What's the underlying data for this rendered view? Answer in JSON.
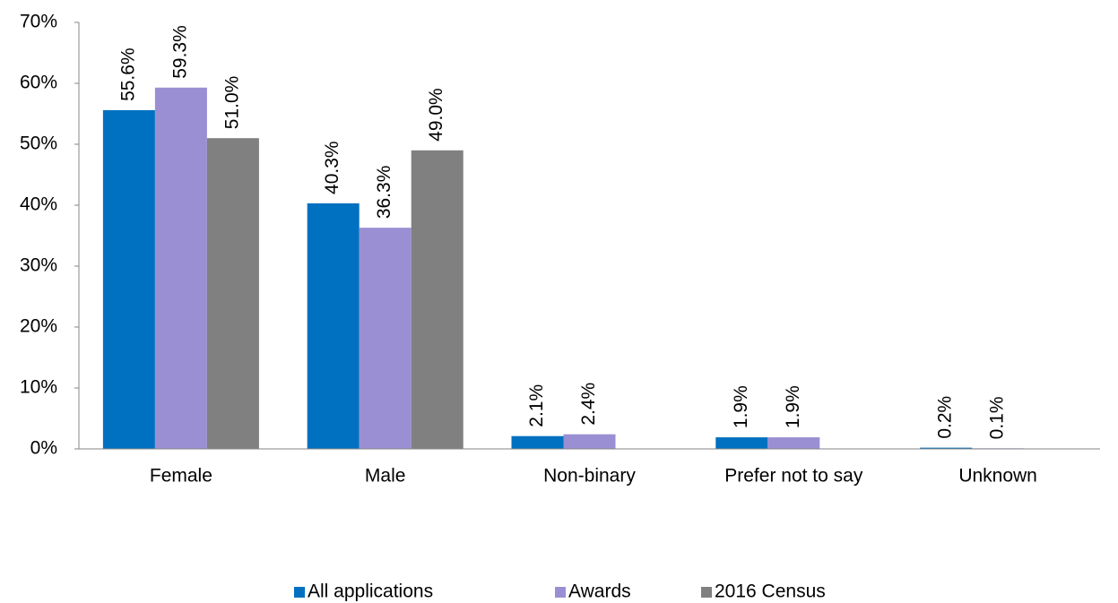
{
  "chart_data": {
    "type": "bar",
    "categories": [
      "Female",
      "Male",
      "Non-binary",
      "Prefer not to say",
      "Unknown"
    ],
    "series": [
      {
        "name": "All applications",
        "color": "#0070c0",
        "values": [
          55.6,
          40.3,
          2.1,
          1.9,
          0.2
        ],
        "value_labels": [
          "55.6%",
          "40.3%",
          "2.1%",
          "1.9%",
          "0.2%"
        ]
      },
      {
        "name": "Awards",
        "color": "#9b8fd3",
        "values": [
          59.3,
          36.3,
          2.4,
          1.9,
          0.1
        ],
        "value_labels": [
          "59.3%",
          "36.3%",
          "2.4%",
          "1.9%",
          "0.1%"
        ]
      },
      {
        "name": "2016 Census",
        "color": "#808080",
        "values": [
          51.0,
          49.0,
          null,
          null,
          null
        ],
        "value_labels": [
          "51.0%",
          "49.0%",
          null,
          null,
          null
        ]
      }
    ],
    "ylim": [
      0,
      70
    ],
    "yticks": [
      {
        "value": 0,
        "label": "0%"
      },
      {
        "value": 10,
        "label": "10%"
      },
      {
        "value": 20,
        "label": "20%"
      },
      {
        "value": 30,
        "label": "30%"
      },
      {
        "value": 40,
        "label": "40%"
      },
      {
        "value": 50,
        "label": "50%"
      },
      {
        "value": 60,
        "label": "60%"
      },
      {
        "value": 70,
        "label": "70%"
      }
    ],
    "grid": false,
    "legend": "bottom"
  }
}
